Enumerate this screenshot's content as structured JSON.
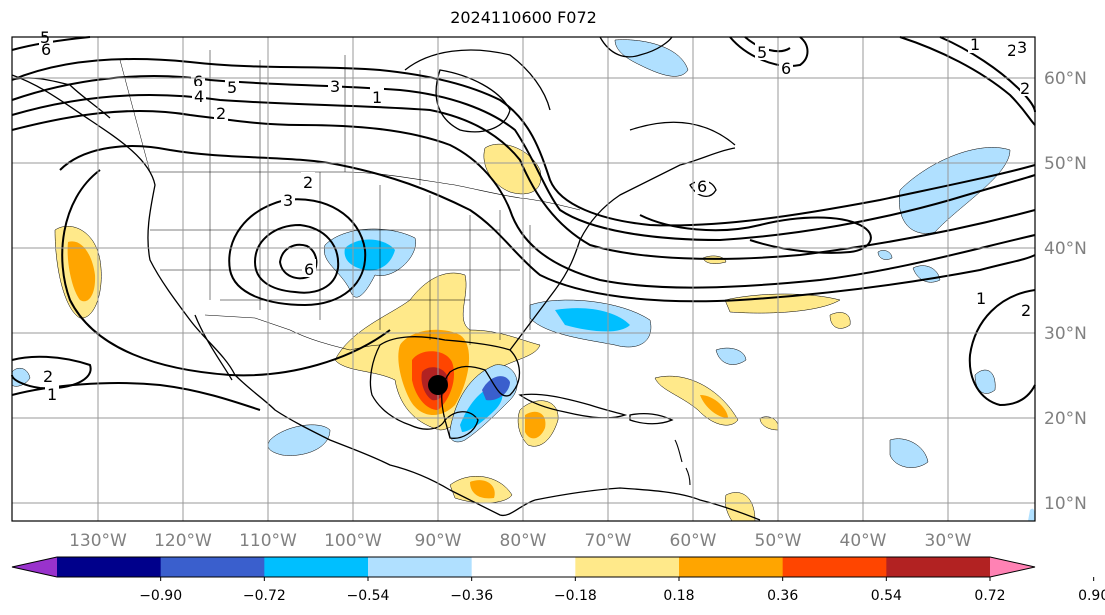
{
  "title": "2024110600 F072",
  "axes": {
    "lon_labels": [
      "130°W",
      "120°W",
      "110°W",
      "100°W",
      "90°W",
      "80°W",
      "70°W",
      "60°W",
      "50°W",
      "40°W",
      "30°W"
    ],
    "lat_labels": [
      "60°N",
      "50°N",
      "40°N",
      "30°N",
      "20°N",
      "10°N"
    ]
  },
  "colorbar": {
    "ticks": [
      "−0.90",
      "−0.72",
      "−0.54",
      "−0.36",
      "−0.18",
      "0.18",
      "0.36",
      "0.54",
      "0.72",
      "0.90"
    ],
    "colors": [
      "#9932cc",
      "#00008b",
      "#3a5fcd",
      "#00bfff",
      "#b0e0ff",
      "#ffffff",
      "#ffe98a",
      "#ffa500",
      "#ff4500",
      "#b22222",
      "#ff82b4"
    ]
  },
  "contour_labels": [
    "6",
    "5",
    "6",
    "5",
    "4",
    "2",
    "3",
    "1",
    "2",
    "3",
    "6",
    "1",
    "2",
    "1",
    "5",
    "6",
    "6",
    "2",
    "1",
    "2",
    "3",
    "2"
  ],
  "storm_marker": "storm-center"
}
